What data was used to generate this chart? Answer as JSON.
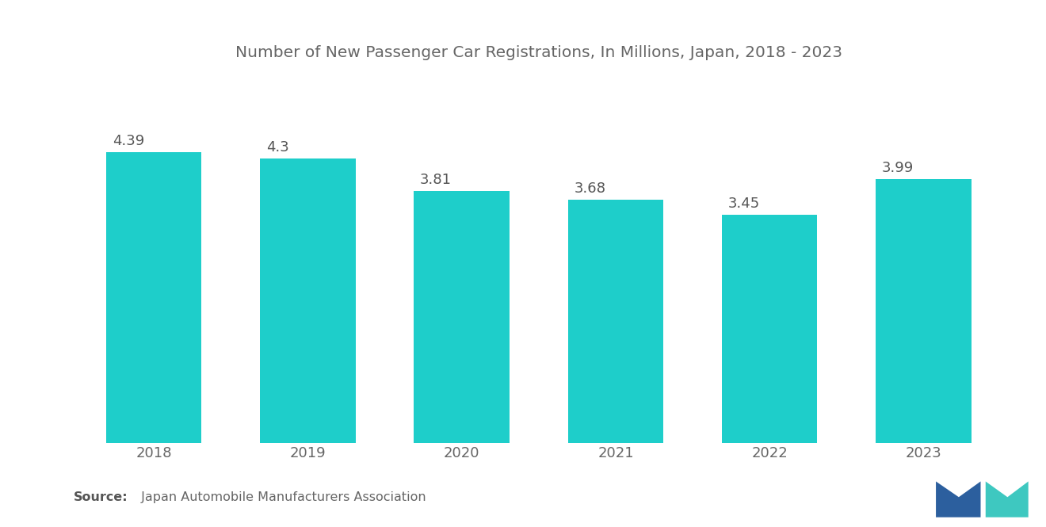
{
  "title": "Number of New Passenger Car Registrations, In Millions, Japan, 2018 - 2023",
  "categories": [
    "2018",
    "2019",
    "2020",
    "2021",
    "2022",
    "2023"
  ],
  "values": [
    4.39,
    4.3,
    3.81,
    3.68,
    3.45,
    3.99
  ],
  "value_labels": [
    "4.39",
    "4.3",
    "3.81",
    "3.68",
    "3.45",
    "3.99"
  ],
  "bar_color": "#1ECECA",
  "background_color": "#FFFFFF",
  "title_fontsize": 14.5,
  "tick_fontsize": 13,
  "value_fontsize": 13,
  "source_bold": "Source:",
  "source_rest": "  Japan Automobile Manufacturers Association",
  "ylim": [
    0,
    5.5
  ],
  "bar_width": 0.62,
  "value_color": "#555555",
  "tick_color": "#666666",
  "title_color": "#666666"
}
